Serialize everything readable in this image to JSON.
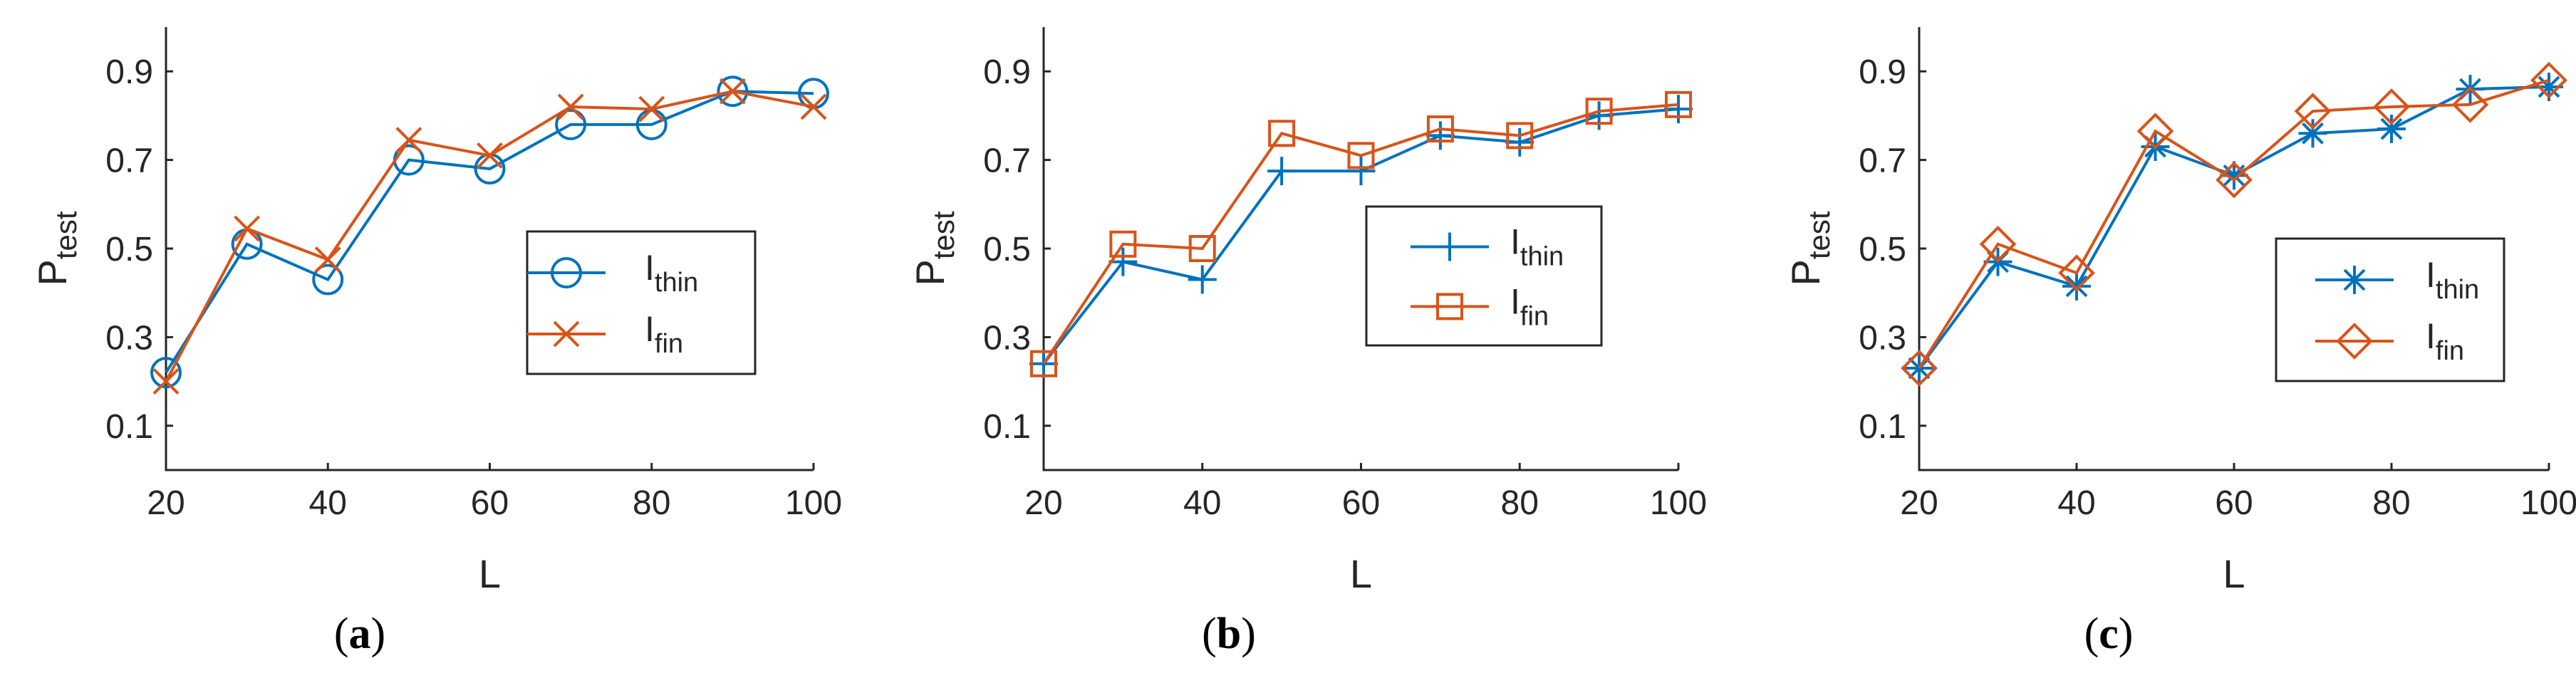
{
  "chart_data": [
    {
      "type": "line",
      "panel_label": {
        "open": "(",
        "letter": "a",
        "close": ")"
      },
      "xlabel": "L",
      "ylabel": {
        "base": "P",
        "sub": "test"
      },
      "x": [
        20,
        30,
        40,
        50,
        60,
        70,
        80,
        90,
        100
      ],
      "xlim": [
        20,
        100
      ],
      "ylim": [
        0,
        1
      ],
      "xticks": [
        "20",
        "40",
        "60",
        "80",
        "100"
      ],
      "yticks": [
        "0.1",
        "0.3",
        "0.5",
        "0.7",
        "0.9"
      ],
      "legend_position": "right-center",
      "series": [
        {
          "name": {
            "base": "I",
            "sub": "thin"
          },
          "marker": "circle",
          "color": "#0072BD",
          "values": [
            0.22,
            0.51,
            0.43,
            0.7,
            0.68,
            0.78,
            0.78,
            0.855,
            0.85
          ]
        },
        {
          "name": {
            "base": "I",
            "sub": "fin"
          },
          "marker": "x",
          "color": "#D95319",
          "values": [
            0.2,
            0.545,
            0.475,
            0.745,
            0.71,
            0.82,
            0.815,
            0.855,
            0.82
          ]
        }
      ]
    },
    {
      "type": "line",
      "panel_label": {
        "open": "(",
        "letter": "b",
        "close": ")"
      },
      "xlabel": "L",
      "ylabel": {
        "base": "P",
        "sub": "test"
      },
      "x": [
        20,
        30,
        40,
        50,
        60,
        70,
        80,
        90,
        100
      ],
      "xlim": [
        20,
        100
      ],
      "ylim": [
        0,
        1
      ],
      "xticks": [
        "20",
        "40",
        "60",
        "80",
        "100"
      ],
      "yticks": [
        "0.1",
        "0.3",
        "0.5",
        "0.7",
        "0.9"
      ],
      "legend_position": "right-center",
      "series": [
        {
          "name": {
            "base": "I",
            "sub": "thin"
          },
          "marker": "plus",
          "color": "#0072BD",
          "values": [
            0.24,
            0.47,
            0.43,
            0.675,
            0.675,
            0.755,
            0.74,
            0.8,
            0.815
          ]
        },
        {
          "name": {
            "base": "I",
            "sub": "fin"
          },
          "marker": "square",
          "color": "#D95319",
          "values": [
            0.24,
            0.51,
            0.5,
            0.76,
            0.71,
            0.77,
            0.755,
            0.81,
            0.825
          ]
        }
      ]
    },
    {
      "type": "line",
      "panel_label": {
        "open": "(",
        "letter": "c",
        "close": ")"
      },
      "xlabel": "L",
      "ylabel": {
        "base": "P",
        "sub": "test"
      },
      "x": [
        20,
        30,
        40,
        50,
        60,
        70,
        80,
        90,
        100
      ],
      "xlim": [
        20,
        100
      ],
      "ylim": [
        0,
        1
      ],
      "xticks": [
        "20",
        "40",
        "60",
        "80",
        "100"
      ],
      "yticks": [
        "0.1",
        "0.3",
        "0.5",
        "0.7",
        "0.9"
      ],
      "legend_position": "right-center",
      "series": [
        {
          "name": {
            "base": "I",
            "sub": "thin"
          },
          "marker": "asterisk",
          "color": "#0072BD",
          "values": [
            0.23,
            0.47,
            0.415,
            0.73,
            0.665,
            0.76,
            0.77,
            0.86,
            0.865
          ]
        },
        {
          "name": {
            "base": "I",
            "sub": "fin"
          },
          "marker": "diamond",
          "color": "#D95319",
          "values": [
            0.23,
            0.51,
            0.445,
            0.765,
            0.655,
            0.81,
            0.82,
            0.825,
            0.88
          ]
        }
      ]
    }
  ]
}
